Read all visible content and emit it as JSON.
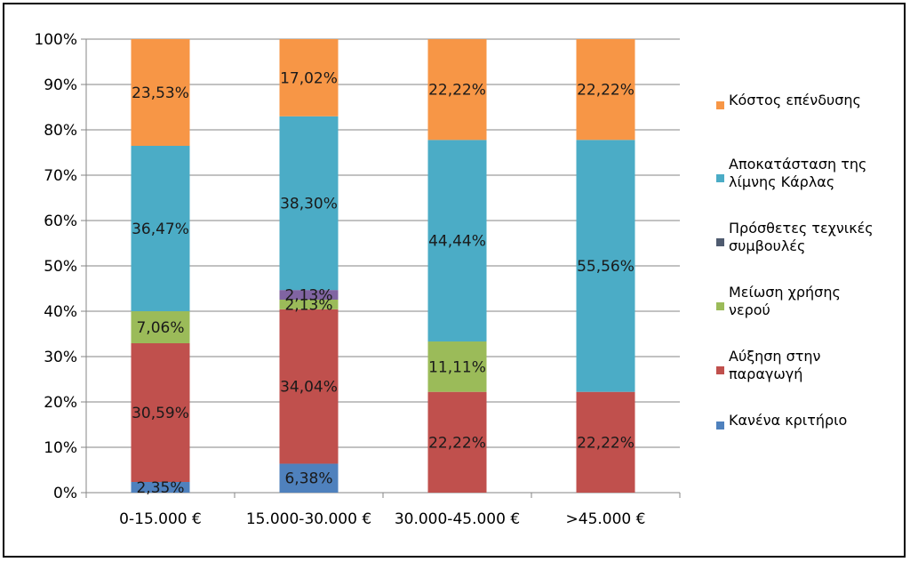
{
  "chart_data": {
    "type": "bar",
    "stacked": true,
    "percent": true,
    "categories": [
      "0-15.000 €",
      "15.000-30.000 €",
      "30.000-45.000 €",
      ">45.000 €"
    ],
    "ylim": [
      0,
      100
    ],
    "yticks": [
      "0%",
      "10%",
      "20%",
      "30%",
      "40%",
      "50%",
      "60%",
      "70%",
      "80%",
      "90%",
      "100%"
    ],
    "grid": true,
    "legend_position": "right",
    "series": [
      {
        "name": "Κανένα κριτήριο",
        "color": "#4f81bd",
        "values": [
          2.35,
          6.38,
          0,
          0
        ],
        "labels": [
          "2,35%",
          "6,38%",
          "",
          ""
        ]
      },
      {
        "name": "Αύξηση στην παραγωγή",
        "color": "#c0504d",
        "values": [
          30.59,
          34.04,
          22.22,
          22.22
        ],
        "labels": [
          "30,59%",
          "34,04%",
          "22,22%",
          "22,22%"
        ]
      },
      {
        "name": "Μείωση χρήσης νερού",
        "color": "#9bbb59",
        "values": [
          7.06,
          2.13,
          11.11,
          0
        ],
        "labels": [
          "7,06%",
          "2,13%",
          "11,11%",
          ""
        ]
      },
      {
        "name": "Πρόσθετες τεχνικές συμβουλές",
        "color": "#8064a2",
        "values": [
          0,
          2.13,
          0,
          0
        ],
        "labels": [
          "",
          "2,13%",
          "",
          ""
        ]
      },
      {
        "name": "Αποκατάσταση της λίμνης Κάρλας",
        "color": "#4bacc6",
        "values": [
          36.47,
          38.3,
          44.44,
          55.56
        ],
        "labels": [
          "36,47%",
          "38,30%",
          "44,44%",
          "55,56%"
        ]
      },
      {
        "name": "Κόστος επένδυσης",
        "color": "#f79646",
        "values": [
          23.53,
          17.02,
          22.22,
          22.22
        ],
        "labels": [
          "23,53%",
          "17,02%",
          "22,22%",
          "22,22%"
        ]
      }
    ],
    "legend": [
      {
        "lines": [
          "Κόστος επένδυσης"
        ],
        "color": "#f79646"
      },
      {
        "lines": [
          "Αποκατάσταση της",
          "λίμνης Κάρλας"
        ],
        "color": "#4bacc6"
      },
      {
        "lines": [
          "Πρόσθετες τεχνικές",
          "συμβουλές"
        ],
        "color": "#4f5b70"
      },
      {
        "lines": [
          "Μείωση χρήσης",
          "νερού"
        ],
        "color": "#9bbb59"
      },
      {
        "lines": [
          "Αύξηση στην",
          "παραγωγή"
        ],
        "color": "#c0504d"
      },
      {
        "lines": [
          "Κανένα κριτήριο"
        ],
        "color": "#4f81bd"
      }
    ]
  }
}
